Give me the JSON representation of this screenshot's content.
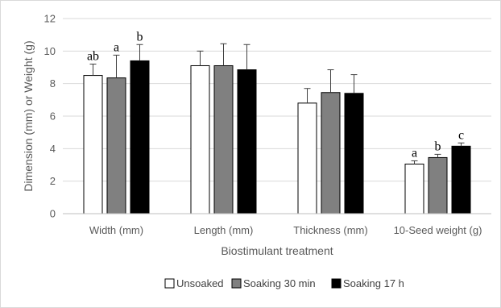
{
  "chart_data": {
    "type": "bar",
    "xlabel": "Biostimulant treatment",
    "ylabel": "Dimension (mm) or Weight (g)",
    "ylim": [
      0,
      12
    ],
    "yticks": [
      0,
      2,
      4,
      6,
      8,
      10,
      12
    ],
    "grid": true,
    "legend": "bottom",
    "categories": [
      "Width (mm)",
      "Length (mm)",
      "Thickness (mm)",
      "10-Seed weight (g)"
    ],
    "series": [
      {
        "name": "Unsoaked",
        "color": "#ffffff",
        "values": [
          8.5,
          9.1,
          6.8,
          3.05
        ],
        "errors": [
          0.7,
          0.9,
          0.9,
          0.2
        ],
        "labels": [
          "ab",
          "",
          "",
          "a"
        ]
      },
      {
        "name": "Soaking 30 min",
        "color": "#808080",
        "values": [
          8.35,
          9.1,
          7.45,
          3.45
        ],
        "errors": [
          1.4,
          1.35,
          1.4,
          0.2
        ],
        "labels": [
          "a",
          "",
          "",
          "b"
        ]
      },
      {
        "name": "Soaking 17 h",
        "color": "#000000",
        "values": [
          9.4,
          8.85,
          7.4,
          4.15
        ],
        "errors": [
          1.0,
          1.55,
          1.15,
          0.2
        ],
        "labels": [
          "b",
          "",
          "",
          "c"
        ]
      }
    ]
  }
}
